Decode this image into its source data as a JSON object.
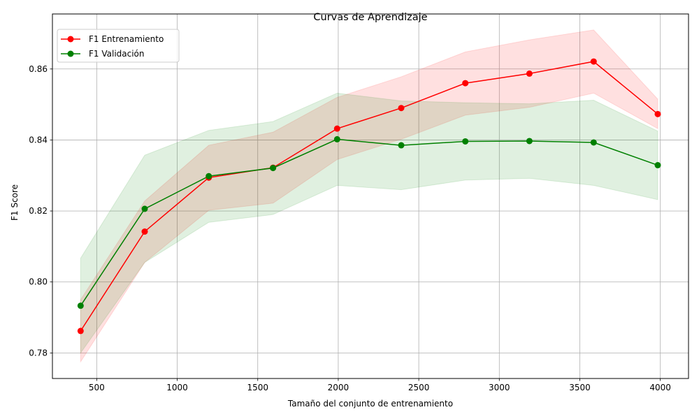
{
  "chart_data": {
    "type": "line",
    "title": "Curvas de Aprendizaje",
    "xlabel": "Tamaño del conjunto de entrenamiento",
    "ylabel": "F1 Score",
    "xlim": [
      225,
      4175
    ],
    "ylim": [
      0.7728,
      0.8755
    ],
    "xticks": [
      500,
      1000,
      1500,
      2000,
      2500,
      3000,
      3500,
      4000
    ],
    "yticks": [
      0.78,
      0.8,
      0.82,
      0.84,
      0.86
    ],
    "xtick_labels": [
      "500",
      "1000",
      "1500",
      "2000",
      "2500",
      "3000",
      "3500",
      "4000"
    ],
    "ytick_labels": [
      "0.78",
      "0.80",
      "0.82",
      "0.84",
      "0.86"
    ],
    "grid": true,
    "legend_position": "top-left",
    "x": [
      400,
      798,
      1196,
      1595,
      1993,
      2391,
      2789,
      3187,
      3586,
      3984
    ],
    "series": [
      {
        "name": "F1 Entrenamiento",
        "color": "#ff0000",
        "band_color": "#ffcccc",
        "values": [
          0.7862,
          0.8142,
          0.8294,
          0.8322,
          0.8432,
          0.849,
          0.856,
          0.8587,
          0.8621,
          0.8473
        ],
        "band_lower": [
          0.7775,
          0.8055,
          0.8202,
          0.8222,
          0.8345,
          0.8402,
          0.847,
          0.8492,
          0.8532,
          0.8432
        ],
        "band_upper": [
          0.795,
          0.8228,
          0.8385,
          0.8422,
          0.852,
          0.8578,
          0.8648,
          0.8682,
          0.871,
          0.8515
        ]
      },
      {
        "name": "F1 Validación",
        "color": "#008000",
        "band_color": "#c8e6c8",
        "values": [
          0.7933,
          0.8206,
          0.8298,
          0.8321,
          0.8402,
          0.8385,
          0.8396,
          0.8397,
          0.8393,
          0.8329
        ],
        "band_lower": [
          0.78,
          0.8055,
          0.8168,
          0.819,
          0.8272,
          0.826,
          0.8287,
          0.8292,
          0.8272,
          0.8232
        ],
        "band_upper": [
          0.8067,
          0.8357,
          0.8427,
          0.8452,
          0.8532,
          0.851,
          0.8505,
          0.8502,
          0.8512,
          0.8425
        ]
      }
    ]
  }
}
